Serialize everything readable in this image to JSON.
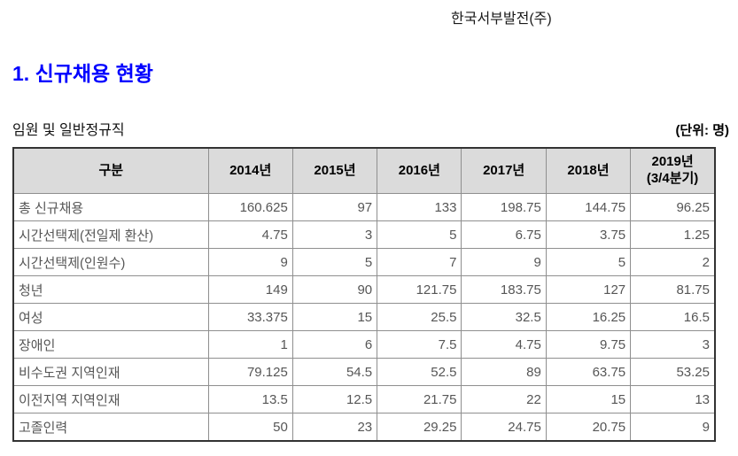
{
  "page": {
    "company_name": "한국서부발전(주)",
    "title": "1. 신규채용 현황",
    "table_caption": "임원 및 일반정규직",
    "unit_label": "(단위: 명)"
  },
  "table": {
    "header": [
      "구분",
      "2014년",
      "2015년",
      "2016년",
      "2017년",
      "2018년"
    ],
    "header_last": {
      "line1": "2019년",
      "line2": "(3/4분기)"
    },
    "rows": [
      {
        "label": "총 신규채용",
        "values": [
          "160.625",
          "97",
          "133",
          "198.75",
          "144.75",
          "96.25"
        ]
      },
      {
        "label": "시간선택제(전일제 환산)",
        "values": [
          "4.75",
          "3",
          "5",
          "6.75",
          "3.75",
          "1.25"
        ]
      },
      {
        "label": "시간선택제(인원수)",
        "values": [
          "9",
          "5",
          "7",
          "9",
          "5",
          "2"
        ]
      },
      {
        "label": "청년",
        "values": [
          "149",
          "90",
          "121.75",
          "183.75",
          "127",
          "81.75"
        ]
      },
      {
        "label": "여성",
        "values": [
          "33.375",
          "15",
          "25.5",
          "32.5",
          "16.25",
          "16.5"
        ]
      },
      {
        "label": "장애인",
        "values": [
          "1",
          "6",
          "7.5",
          "4.75",
          "9.75",
          "3"
        ]
      },
      {
        "label": "비수도권 지역인재",
        "values": [
          "79.125",
          "54.5",
          "52.5",
          "89",
          "63.75",
          "53.25"
        ]
      },
      {
        "label": "이전지역 지역인재",
        "values": [
          "13.5",
          "12.5",
          "21.75",
          "22",
          "15",
          "13"
        ]
      },
      {
        "label": "고졸인력",
        "values": [
          "50",
          "23",
          "29.25",
          "24.75",
          "20.75",
          "9"
        ]
      }
    ]
  },
  "colors": {
    "title_accent": "#0000ff",
    "header_background": "#dbdbdb",
    "outer_border": "#333333",
    "inner_border": "#8f8f8f",
    "cell_text": "#565656"
  }
}
